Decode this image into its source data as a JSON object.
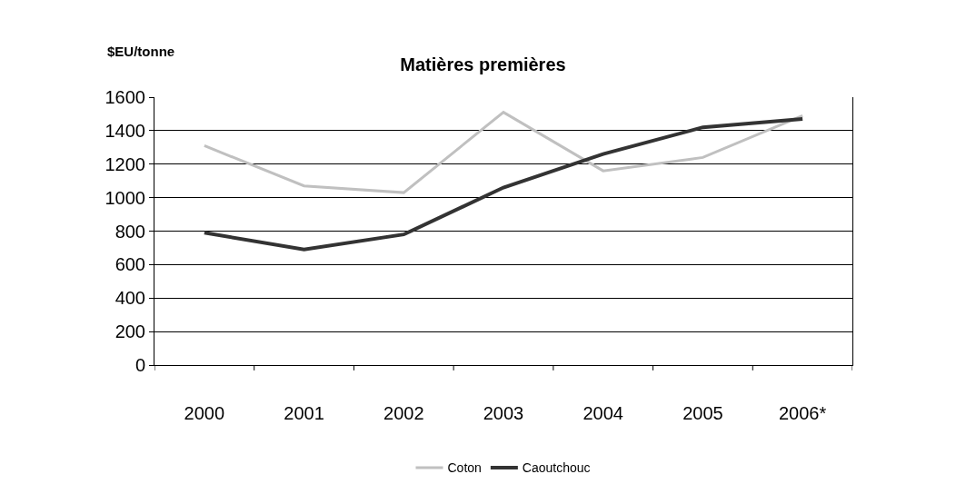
{
  "chart_data": {
    "type": "line",
    "title": "Matières premières",
    "ylabel": "$EU/tonne",
    "categories": [
      "2000",
      "2001",
      "2002",
      "2003",
      "2004",
      "2005",
      "2006*"
    ],
    "series": [
      {
        "name": "Coton",
        "color": "#c0c0c0",
        "values": [
          1310,
          1070,
          1030,
          1510,
          1160,
          1240,
          1490
        ]
      },
      {
        "name": "Caoutchouc",
        "color": "#333333",
        "values": [
          790,
          690,
          780,
          1060,
          1260,
          1420,
          1470
        ]
      }
    ],
    "ylim": [
      0,
      1600
    ],
    "yticks": [
      0,
      200,
      400,
      600,
      800,
      1000,
      1200,
      1400,
      1600
    ],
    "grid": "y",
    "legend": "bottom",
    "marker": "none",
    "line_style": "solid"
  }
}
